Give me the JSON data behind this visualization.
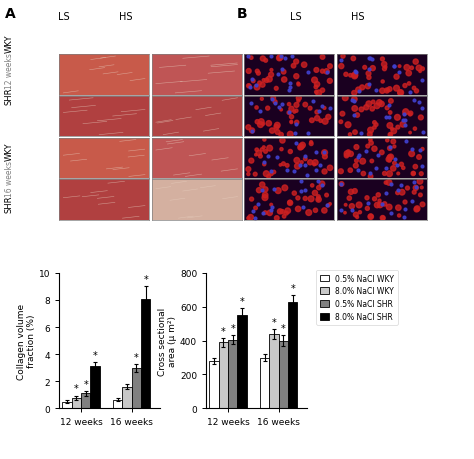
{
  "left_chart": {
    "title": "Collagen volume\nfraction (%)",
    "ylabel": "Collagen volume\nfraction (%)",
    "groups": [
      "12 weeks",
      "16 weeks"
    ],
    "bars": {
      "0.5% NaCl WKY": [
        0.5,
        0.65
      ],
      "8.0% NaCl WKY": [
        0.8,
        1.6
      ],
      "0.5% NaCl SHR": [
        1.1,
        3.0
      ],
      "8.0% NaCl SHR": [
        3.1,
        8.1
      ]
    },
    "errors": {
      "0.5% NaCl WKY": [
        0.1,
        0.1
      ],
      "8.0% NaCl WKY": [
        0.15,
        0.2
      ],
      "0.5% NaCl SHR": [
        0.2,
        0.3
      ],
      "8.0% NaCl SHR": [
        0.35,
        0.9
      ]
    },
    "significant": {
      "8.0% NaCl WKY": [
        true,
        false
      ],
      "0.5% NaCl SHR": [
        true,
        true
      ],
      "8.0% NaCl SHR": [
        true,
        true
      ]
    },
    "ylim": [
      0,
      10.0
    ],
    "yticks": [
      0,
      2.0,
      4.0,
      6.0,
      8.0,
      10.0
    ],
    "colors": [
      "#ffffff",
      "#c8c8c8",
      "#808080",
      "#000000"
    ]
  },
  "right_chart": {
    "ylabel": "Cross sectional\narea (μ m²)",
    "groups": [
      "12 weeks",
      "16 weeks"
    ],
    "bars": {
      "0.5% NaCl WKY": [
        280,
        300
      ],
      "8.0% NaCl WKY": [
        390,
        440
      ],
      "0.5% NaCl SHR": [
        405,
        400
      ],
      "8.0% NaCl SHR": [
        550,
        630
      ]
    },
    "errors": {
      "0.5% NaCl WKY": [
        20,
        20
      ],
      "8.0% NaCl WKY": [
        25,
        30
      ],
      "0.5% NaCl SHR": [
        25,
        30
      ],
      "8.0% NaCl SHR": [
        40,
        40
      ]
    },
    "significant": {
      "8.0% NaCl WKY": [
        true,
        true
      ],
      "0.5% NaCl SHR": [
        true,
        true
      ],
      "8.0% NaCl SHR": [
        true,
        true
      ]
    },
    "ylim": [
      0,
      800
    ],
    "yticks": [
      0,
      200,
      400,
      600,
      800
    ],
    "colors": [
      "#ffffff",
      "#c8c8c8",
      "#808080",
      "#000000"
    ]
  },
  "legend_labels": [
    "0.5% NaCl WKY",
    "8.0% NaCl WKY",
    "0.5% NaCl SHR",
    "8.0% NaCl SHR"
  ],
  "legend_colors": [
    "#ffffff",
    "#c8c8c8",
    "#808080",
    "#000000"
  ],
  "panel_A_label": "A",
  "panel_B_label": "B",
  "panel_A_col_labels": [
    "LS",
    "HS"
  ],
  "panel_B_col_labels": [
    "LS",
    "HS"
  ],
  "row_labels": [
    "WKY",
    "SHR",
    "WKY",
    "SHR"
  ],
  "time_labels": [
    "12 weeks",
    "16 weeks"
  ],
  "figure_bgcolor": "#f5f5f5"
}
